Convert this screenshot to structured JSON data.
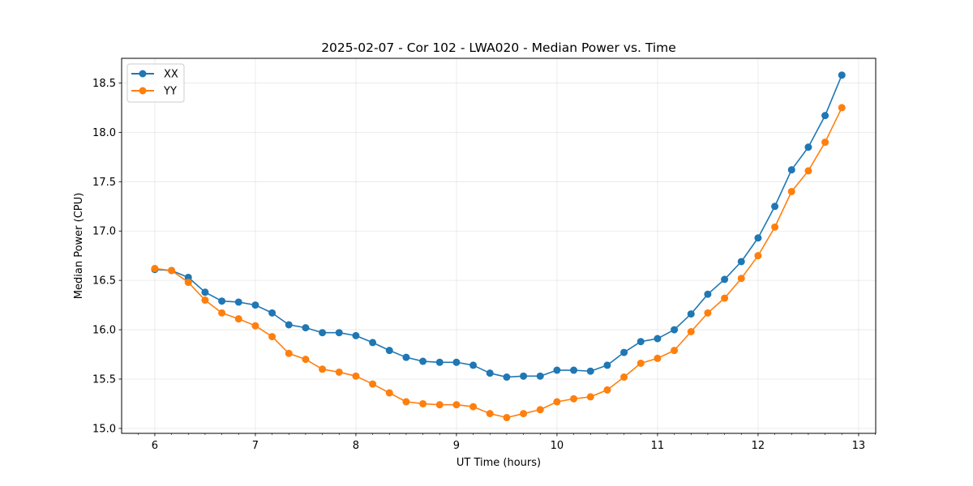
{
  "chart_data": {
    "type": "line",
    "title": "2025-02-07 - Cor 102 - LWA020 - Median Power vs. Time",
    "xlabel": "UT Time (hours)",
    "ylabel": "Median Power (CPU)",
    "xlim": [
      5.67,
      13.17
    ],
    "ylim": [
      14.95,
      18.75
    ],
    "xticks": [
      6,
      7,
      8,
      9,
      10,
      11,
      12,
      13
    ],
    "xtick_labels": [
      "6",
      "7",
      "8",
      "9",
      "10",
      "11",
      "12",
      "13"
    ],
    "yticks": [
      15.0,
      15.5,
      16.0,
      16.5,
      17.0,
      17.5,
      18.0,
      18.5
    ],
    "ytick_labels": [
      "15.0",
      "15.5",
      "16.0",
      "16.5",
      "17.0",
      "17.5",
      "18.0",
      "18.5"
    ],
    "grid": true,
    "legend_position": "top-left",
    "x": [
      6.0,
      6.1667,
      6.3333,
      6.5,
      6.6667,
      6.8333,
      7.0,
      7.1667,
      7.3333,
      7.5,
      7.6667,
      7.8333,
      8.0,
      8.1667,
      8.3333,
      8.5,
      8.6667,
      8.8333,
      9.0,
      9.1667,
      9.3333,
      9.5,
      9.6667,
      9.8333,
      10.0,
      10.1667,
      10.3333,
      10.5,
      10.6667,
      10.8333,
      11.0,
      11.1667,
      11.3333,
      11.5,
      11.6667,
      11.8333,
      12.0,
      12.1667,
      12.3333,
      12.5,
      12.6667,
      12.8333
    ],
    "series": [
      {
        "name": "XX",
        "color": "#1f77b4",
        "values": [
          16.61,
          16.6,
          16.53,
          16.38,
          16.29,
          16.28,
          16.25,
          16.17,
          16.05,
          16.02,
          15.97,
          15.97,
          15.94,
          15.87,
          15.79,
          15.72,
          15.68,
          15.67,
          15.67,
          15.64,
          15.56,
          15.52,
          15.53,
          15.53,
          15.59,
          15.59,
          15.58,
          15.64,
          15.77,
          15.88,
          15.91,
          16.0,
          16.16,
          16.36,
          16.51,
          16.69,
          16.93,
          17.25,
          17.62,
          17.85,
          18.17,
          18.58
        ]
      },
      {
        "name": "YY",
        "color": "#ff7f0e",
        "values": [
          16.62,
          16.6,
          16.48,
          16.3,
          16.17,
          16.11,
          16.04,
          15.93,
          15.76,
          15.7,
          15.6,
          15.57,
          15.53,
          15.45,
          15.36,
          15.27,
          15.25,
          15.24,
          15.24,
          15.22,
          15.15,
          15.11,
          15.15,
          15.19,
          15.27,
          15.3,
          15.32,
          15.39,
          15.52,
          15.66,
          15.71,
          15.79,
          15.98,
          16.17,
          16.32,
          16.52,
          16.75,
          17.04,
          17.4,
          17.61,
          17.9,
          18.25
        ]
      }
    ]
  }
}
